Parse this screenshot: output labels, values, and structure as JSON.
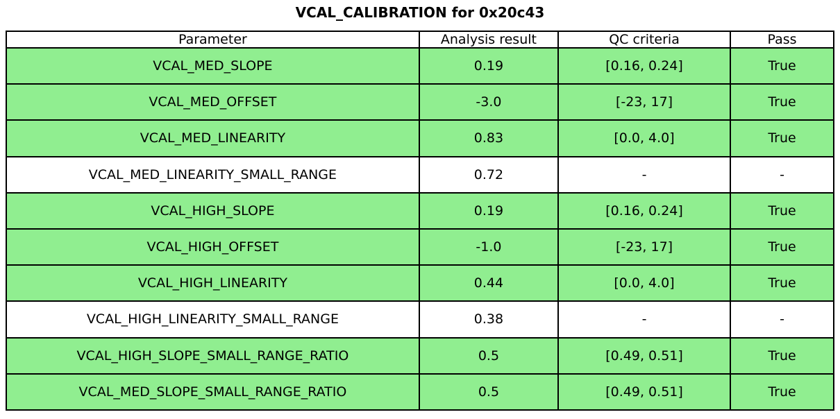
{
  "title": "VCAL_CALIBRATION for 0x20c43",
  "chart_data": {
    "type": "table",
    "title": "VCAL_CALIBRATION for 0x20c43",
    "columns": [
      "Parameter",
      "Analysis result",
      "QC criteria",
      "Pass"
    ],
    "rows": [
      {
        "parameter": "VCAL_MED_SLOPE",
        "result": "0.19",
        "qc": "[0.16, 0.24]",
        "pass": "True",
        "highlight": true
      },
      {
        "parameter": "VCAL_MED_OFFSET",
        "result": "-3.0",
        "qc": "[-23, 17]",
        "pass": "True",
        "highlight": true
      },
      {
        "parameter": "VCAL_MED_LINEARITY",
        "result": "0.83",
        "qc": "[0.0, 4.0]",
        "pass": "True",
        "highlight": true
      },
      {
        "parameter": "VCAL_MED_LINEARITY_SMALL_RANGE",
        "result": "0.72",
        "qc": "-",
        "pass": "-",
        "highlight": false
      },
      {
        "parameter": "VCAL_HIGH_SLOPE",
        "result": "0.19",
        "qc": "[0.16, 0.24]",
        "pass": "True",
        "highlight": true
      },
      {
        "parameter": "VCAL_HIGH_OFFSET",
        "result": "-1.0",
        "qc": "[-23, 17]",
        "pass": "True",
        "highlight": true
      },
      {
        "parameter": "VCAL_HIGH_LINEARITY",
        "result": "0.44",
        "qc": "[0.0, 4.0]",
        "pass": "True",
        "highlight": true
      },
      {
        "parameter": "VCAL_HIGH_LINEARITY_SMALL_RANGE",
        "result": "0.38",
        "qc": "-",
        "pass": "-",
        "highlight": false
      },
      {
        "parameter": "VCAL_HIGH_SLOPE_SMALL_RANGE_RATIO",
        "result": "0.5",
        "qc": "[0.49, 0.51]",
        "pass": "True",
        "highlight": true
      },
      {
        "parameter": "VCAL_MED_SLOPE_SMALL_RANGE_RATIO",
        "result": "0.5",
        "qc": "[0.49, 0.51]",
        "pass": "True",
        "highlight": true
      }
    ],
    "layout": {
      "grid": "off",
      "header_background": "#FFFFFF",
      "legend": "none"
    }
  },
  "colors": {
    "pass_row_green": "#90EE90",
    "plain_row_white": "#FFFFFF",
    "border_black": "#000000",
    "text_black": "#000000"
  }
}
